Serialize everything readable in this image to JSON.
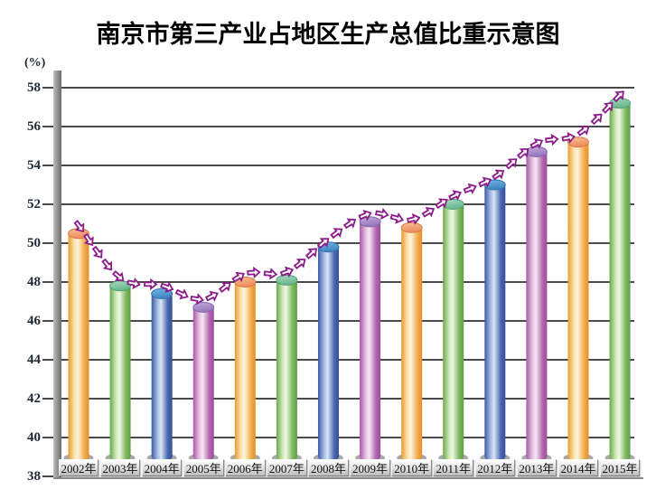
{
  "title": "南京市第三产业占地区生产总值比重示意图",
  "y_axis": {
    "unit_label": "(%)",
    "ticks": [
      58,
      56,
      54,
      52,
      50,
      48,
      46,
      44,
      42,
      40,
      38
    ]
  },
  "chart_data": {
    "type": "bar",
    "title": "南京市第三产业占地区生产总值比重示意图",
    "xlabel": "",
    "ylabel": "(%)",
    "ylim": [
      38,
      58
    ],
    "ytick_step": 2,
    "grid": true,
    "legend": "none",
    "categories": [
      "2002年",
      "2003年",
      "2004年",
      "2005年",
      "2006年",
      "2007年",
      "2008年",
      "2009年",
      "2010年",
      "2011年",
      "2012年",
      "2013年",
      "2014年",
      "2015年"
    ],
    "values": [
      50.5,
      47.8,
      47.4,
      46.7,
      48.0,
      48.1,
      49.8,
      51.1,
      50.8,
      52.0,
      53.0,
      54.7,
      55.2,
      57.2
    ],
    "bar_style": "3d-cylinder",
    "bar_color_cycle": [
      "orange",
      "green",
      "blue",
      "purple"
    ],
    "trend_line": {
      "style": "hollow-block-arrows",
      "color": "#8B1A8B",
      "fill": "#ffffff"
    },
    "colors": {
      "gridline": "#4a4a4a",
      "axis_bar": "#8f8f8f",
      "tick_text": "#1d2936",
      "title_text": "#000000",
      "orange_body": [
        "#EA9A33",
        "#FBE3AE",
        "#FEF4DC",
        "#F2AC4C",
        "#E38E2A"
      ],
      "orange_top": [
        "#F7C296",
        "#EE8B5E"
      ],
      "green_body": [
        "#69A94C",
        "#CFEAB8",
        "#EFF8E6",
        "#7DB85E",
        "#5C9F42"
      ],
      "green_top": [
        "#A6DCC0",
        "#66B68C"
      ],
      "blue_body": [
        "#3C59A6",
        "#A9C0E4",
        "#D9E5F6",
        "#4A67B0",
        "#34509C"
      ],
      "blue_top": [
        "#72B4E2",
        "#3E87C2"
      ],
      "purple_body": [
        "#A958A9",
        "#E5C2E2",
        "#F7E7F5",
        "#B267B0",
        "#9D4C9D"
      ],
      "purple_top": [
        "#C3A8DC",
        "#9678BC"
      ]
    }
  }
}
